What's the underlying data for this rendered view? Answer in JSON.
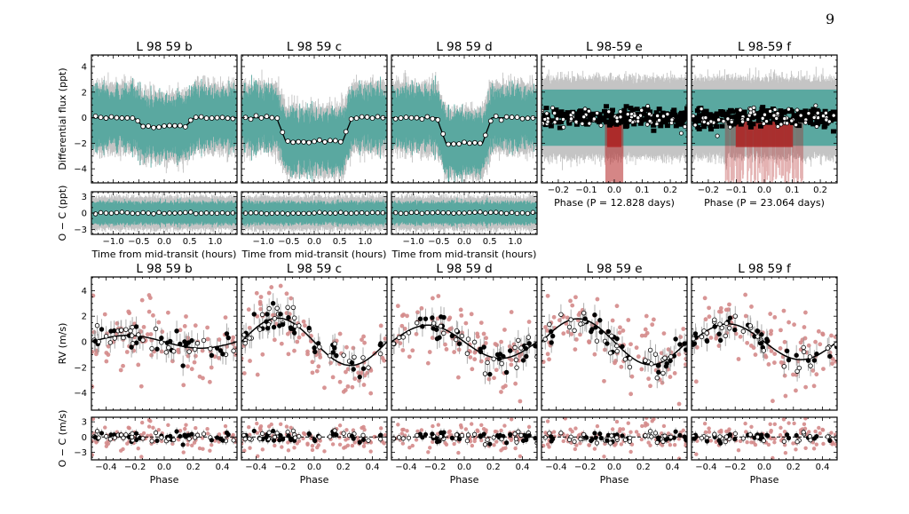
{
  "page_number": "9",
  "colors": {
    "teal": "#5aa8a0",
    "gray_err": "#c4c4c4",
    "red": "#b22222",
    "red_pts": "#d48a8a",
    "black": "#000000"
  },
  "chart_data": {
    "type": "scatter",
    "transit_panels": [
      {
        "title": "L 98 59 b",
        "kind": "transit",
        "depth_ppt": 0.7,
        "half_duration_hr": 0.5,
        "xlim": [
          -1.43,
          1.43
        ],
        "ylim": [
          -5.1,
          4.9
        ],
        "yticks": [
          -4,
          -2,
          0,
          2,
          4
        ],
        "xticks": [
          -1.0,
          -0.5,
          0.0,
          0.5,
          1.0
        ],
        "xlabel": "Time from mid-transit (hours)",
        "ylabel": "Differential flux (ppt)",
        "res_ylabel": "O − C (ppt)",
        "res_ylim": [
          -3.9,
          3.9
        ],
        "res_yticks": [
          -3,
          0,
          3
        ]
      },
      {
        "title": "L 98 59 c",
        "kind": "transit",
        "depth_ppt": 1.85,
        "half_duration_hr": 0.65,
        "xlim": [
          -1.43,
          1.43
        ],
        "ylim": [
          -5.1,
          4.9
        ],
        "xticks": [
          -1.0,
          -0.5,
          0.0,
          0.5,
          1.0
        ],
        "xlabel": "Time from mid-transit (hours)",
        "res_ylim": [
          -3.9,
          3.9
        ]
      },
      {
        "title": "L 98 59 d",
        "kind": "transit",
        "depth_ppt": 2.0,
        "half_duration_hr": 0.45,
        "xlim": [
          -1.43,
          1.43
        ],
        "ylim": [
          -5.1,
          4.9
        ],
        "xticks": [
          -1.0,
          -0.5,
          0.0,
          0.5,
          1.0
        ],
        "xlabel": "Time from mid-transit (hours)",
        "res_ylim": [
          -3.9,
          3.9
        ]
      },
      {
        "title": "L 98-59 e",
        "kind": "phase",
        "period_days": 12.828,
        "red_halfwidth": 0.03,
        "xlim": [
          -0.26,
          0.26
        ],
        "ylim": [
          -5.1,
          4.9
        ],
        "xticks": [
          -0.2,
          -0.1,
          0.0,
          0.1,
          0.2
        ],
        "xlabel": "Phase (P = 12.828 days)"
      },
      {
        "title": "L 98-59 f",
        "kind": "phase",
        "period_days": 23.064,
        "red_halfwidth": 0.12,
        "xlim": [
          -0.26,
          0.26
        ],
        "ylim": [
          -5.1,
          4.9
        ],
        "xticks": [
          -0.2,
          -0.1,
          0.0,
          0.1,
          0.2
        ],
        "xlabel": "Phase (P = 23.064 days)"
      }
    ],
    "rv_panels": [
      {
        "title": "L 98 59 b",
        "K_ms": 0.5
      },
      {
        "title": "L 98 59 c",
        "K_ms": 1.85
      },
      {
        "title": "L 98 59 d",
        "K_ms": 1.3
      },
      {
        "title": "L 98 59 e",
        "K_ms": 1.8
      },
      {
        "title": "L 98 59 f",
        "K_ms": 1.4
      }
    ],
    "rv_axes": {
      "xlim": [
        -0.5,
        0.5
      ],
      "ylim": [
        -5.35,
        5.07
      ],
      "xticks": [
        -0.4,
        -0.2,
        0.0,
        0.2,
        0.4
      ],
      "yticks": [
        -4,
        -2,
        0,
        2,
        4
      ],
      "xlabel": "Phase",
      "ylabel": "RV (m/s)",
      "res_ylabel": "O − C (m/s)",
      "res_ylim": [
        -4.5,
        3.9
      ],
      "res_yticks": [
        -3,
        0,
        3
      ]
    }
  }
}
